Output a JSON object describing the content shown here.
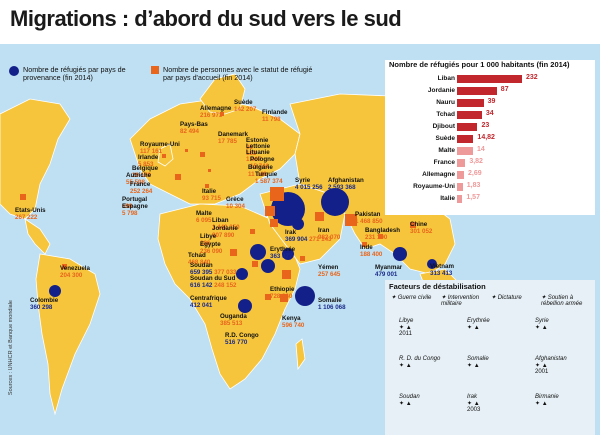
{
  "title": "Migrations : d’abord du sud vers le sud",
  "legend": {
    "refugees": "Nombre de réfugiés par pays de provenance (fin 2014)",
    "hosts": "Nombre de personnes avec le statut de réfugié par pays d'accueil (fin 2014)"
  },
  "colors": {
    "ocean": "#bfe0f2",
    "land": "#f6c53b",
    "refugee": "#13208a",
    "host": "#e8651b",
    "bar_dark": "#c1272d",
    "bar_light": "#ef9a9a"
  },
  "countries": [
    {
      "name": "Suède",
      "host": "142 207"
    },
    {
      "name": "Allemagne",
      "host": "216 973"
    },
    {
      "name": "Finlande",
      "host": "11 798"
    },
    {
      "name": "Pays-Bas",
      "host": "82 494"
    },
    {
      "name": "Royaume-Uni",
      "host": "117 161"
    },
    {
      "name": "Danemark",
      "host": "17 785"
    },
    {
      "name": "Estonie",
      "host": "90"
    },
    {
      "name": "Lettonie",
      "host": "183"
    },
    {
      "name": "Lituanie",
      "host": "1 007"
    },
    {
      "name": "Irlande",
      "host": "5 853"
    },
    {
      "name": "Belgique",
      "host": "29 179"
    },
    {
      "name": "Autriche",
      "host": "55 598"
    },
    {
      "name": "Pologne",
      "host": "15 741"
    },
    {
      "name": "Bulgarie",
      "host": "11 046"
    },
    {
      "name": "France",
      "host": "252 264"
    },
    {
      "name": "Turquie",
      "host": "1 587 374"
    },
    {
      "name": "Portugal",
      "host": "699"
    },
    {
      "name": "Espagne",
      "host": "5 798"
    },
    {
      "name": "Italie",
      "host": "93 715"
    },
    {
      "name": "Grèce",
      "host": "10 304"
    },
    {
      "name": "Malte",
      "host": "6 095"
    },
    {
      "name": "Syrie",
      "refugees": "4 015 256"
    },
    {
      "name": "Afghanistan",
      "refugees": "2 593 368"
    },
    {
      "name": "Etats-Unis",
      "host": "267 222"
    },
    {
      "name": "Liban",
      "host": "1 442 350"
    },
    {
      "name": "Jordanie",
      "host": "807 890"
    },
    {
      "name": "Irak",
      "refugees": "369 904",
      "host": "271 143"
    },
    {
      "name": "Iran",
      "host": "982 070"
    },
    {
      "name": "Pakistan",
      "host": "1 468 850"
    },
    {
      "name": "Libye",
      "host": "286"
    },
    {
      "name": "Egypte",
      "host": "236 090"
    },
    {
      "name": "Bangladesh",
      "host": "231 100"
    },
    {
      "name": "Inde",
      "host": "188 400"
    },
    {
      "name": "Chine",
      "host": "301 052"
    },
    {
      "name": "Tchad",
      "host": "468 840"
    },
    {
      "name": "Erythrée",
      "refugees": "363 077"
    },
    {
      "name": "Soudan",
      "refugees": "659 395",
      "host": "377 033"
    },
    {
      "name": "Soudan du Sud",
      "refugees": "616 142",
      "host": "248 152"
    },
    {
      "name": "Yémen",
      "host": "257 645"
    },
    {
      "name": "Myanmar",
      "refugees": "479 001"
    },
    {
      "name": "Vietnam",
      "refugees": "313 413"
    },
    {
      "name": "Venezuela",
      "host": "204 300"
    },
    {
      "name": "Colombie",
      "refugees": "360 298"
    },
    {
      "name": "Centrafrique",
      "refugees": "412 041"
    },
    {
      "name": "Ethiopie",
      "host": "728 960"
    },
    {
      "name": "Somalie",
      "refugees": "1 106 068"
    },
    {
      "name": "Ouganda",
      "host": "385 513"
    },
    {
      "name": "R.D. Congo",
      "refugees": "516 770"
    },
    {
      "name": "Kenya",
      "host": "596 740"
    }
  ],
  "per_capita": {
    "title": "Nombre de réfugiés pour 1 000 habitants (fin 2014)",
    "rows": [
      {
        "country": "Liban",
        "value": "232",
        "num": 232
      },
      {
        "country": "Jordanie",
        "value": "87",
        "num": 87
      },
      {
        "country": "Nauru",
        "value": "39",
        "num": 39
      },
      {
        "country": "Tchad",
        "value": "34",
        "num": 34
      },
      {
        "country": "Djibout",
        "value": "23",
        "num": 23
      },
      {
        "country": "Suède",
        "value": "14,82",
        "num": 14.82
      },
      {
        "country": "Malte",
        "value": "14",
        "num": 14
      },
      {
        "country": "France",
        "value": "3,82",
        "num": 3.82
      },
      {
        "country": "Allemagne",
        "value": "2,69",
        "num": 2.69
      },
      {
        "country": "Royaume-Uni",
        "value": "1,83",
        "num": 1.83
      },
      {
        "country": "Italie",
        "value": "1,57",
        "num": 1.57
      }
    ]
  },
  "factors": {
    "title": "Facteurs de déstabilisation",
    "legend": [
      "Guerre civile",
      "Intervention militaire",
      "Dictature",
      "Soutien à rébellion armée"
    ],
    "countries": [
      {
        "name": "Libye",
        "year": "2011"
      },
      {
        "name": "Erythrée",
        "year": ""
      },
      {
        "name": "Syrie",
        "year": ""
      },
      {
        "name": "R. D. du Congo",
        "year": ""
      },
      {
        "name": "Somalie",
        "year": ""
      },
      {
        "name": "Afghanistan",
        "year": "2001"
      },
      {
        "name": "Soudan",
        "year": ""
      },
      {
        "name": "Irak",
        "year": "2003"
      },
      {
        "name": "Birmanie",
        "year": ""
      }
    ]
  },
  "credit": "Sources : UNHCR et Banque mondiale"
}
